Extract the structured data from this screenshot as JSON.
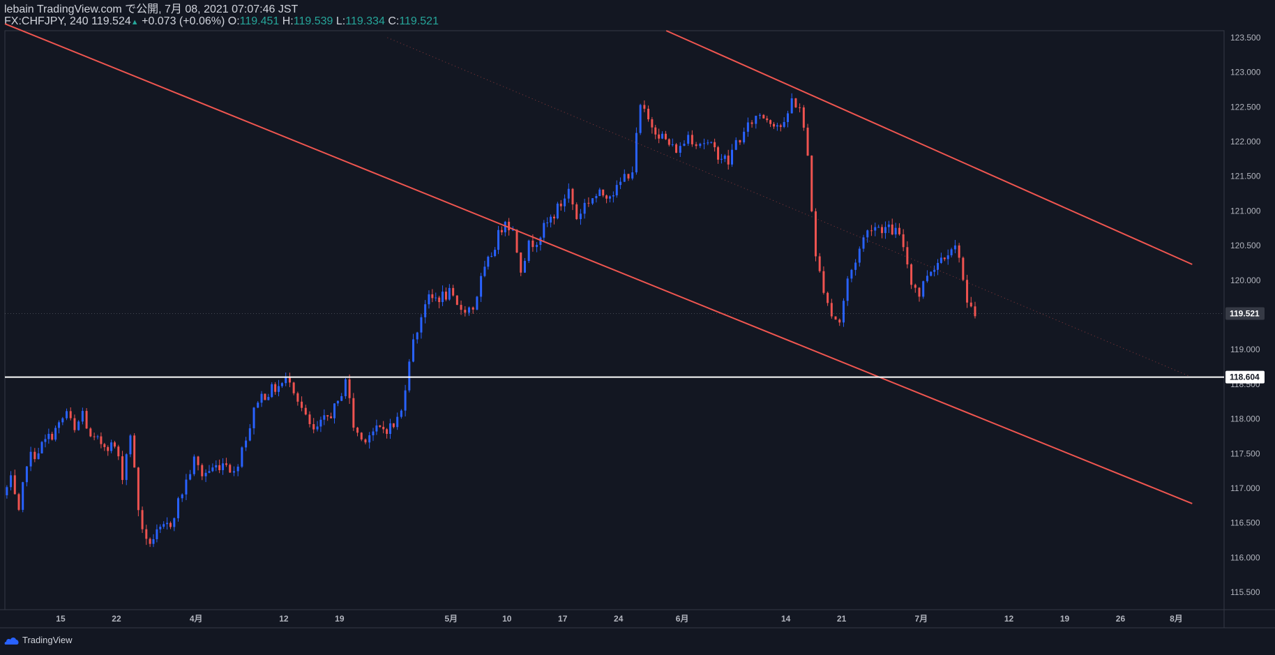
{
  "header": {
    "publisher": "lebain TradingView.com で公開, 7月 08, 2021 07:07:46 JST",
    "symbol": "FX:CHFJPY, 240",
    "last": "119.524",
    "change_arrow": "▲",
    "change": "+0.073 (+0.06%)",
    "o_label": "O:",
    "o_value": "119.451",
    "h_label": "H:",
    "h_value": "119.539",
    "l_label": "L:",
    "l_value": "119.334",
    "c_label": "C:",
    "c_value": "119.521"
  },
  "footer": {
    "brand": "TradingView"
  },
  "colors": {
    "background": "#131722",
    "up": "#2962ff",
    "down": "#ef5350",
    "trendline": "#f05650",
    "axis_text": "#b2b5be",
    "horizontal_line": "#ffffff"
  },
  "chart_data": {
    "type": "candlestick",
    "symbol": "FX:CHFJPY",
    "interval": "240",
    "ylim": [
      115.25,
      123.6
    ],
    "xlim": [
      "2021-03-08",
      "2021-08-08"
    ],
    "y_ticks": [
      "115.500",
      "116.000",
      "116.500",
      "117.000",
      "117.500",
      "118.000",
      "118.500",
      "119.000",
      "119.500",
      "120.000",
      "120.500",
      "121.000",
      "121.500",
      "122.000",
      "122.500",
      "123.000",
      "123.500"
    ],
    "x_ticks": [
      {
        "label": "15",
        "date": "2021-03-15"
      },
      {
        "label": "22",
        "date": "2021-03-22"
      },
      {
        "label": "4月",
        "date": "2021-04-01"
      },
      {
        "label": "12",
        "date": "2021-04-12"
      },
      {
        "label": "19",
        "date": "2021-04-19"
      },
      {
        "label": "5月",
        "date": "2021-05-03"
      },
      {
        "label": "10",
        "date": "2021-05-10"
      },
      {
        "label": "17",
        "date": "2021-05-17"
      },
      {
        "label": "24",
        "date": "2021-05-24"
      },
      {
        "label": "6月",
        "date": "2021-06-01"
      },
      {
        "label": "14",
        "date": "2021-06-14"
      },
      {
        "label": "21",
        "date": "2021-06-21"
      },
      {
        "label": "7月",
        "date": "2021-07-01"
      },
      {
        "label": "12",
        "date": "2021-07-12"
      },
      {
        "label": "19",
        "date": "2021-07-19"
      },
      {
        "label": "26",
        "date": "2021-07-26"
      },
      {
        "label": "8月",
        "date": "2021-08-02"
      }
    ],
    "price_labels": [
      {
        "value": 119.521,
        "text": "119.521"
      },
      {
        "value": 118.604,
        "text": "118.604"
      }
    ],
    "horizontal_level": 118.604,
    "trendlines": [
      {
        "name": "channel-lower",
        "from": {
          "date": "2021-03-08",
          "price": 123.7
        },
        "to": {
          "date": "2021-08-04",
          "price": 116.78
        }
      },
      {
        "name": "channel-upper",
        "from": {
          "date": "2021-05-30",
          "price": 123.6
        },
        "to": {
          "date": "2021-08-04",
          "price": 120.23
        }
      },
      {
        "name": "channel-mid",
        "from": {
          "date": "2021-04-25",
          "price": 123.5
        },
        "to": {
          "date": "2021-08-04",
          "price": 118.6
        }
      }
    ],
    "path": [
      [
        "2021-03-08",
        116.9
      ],
      [
        "2021-03-09",
        117.1
      ],
      [
        "2021-03-10",
        116.6
      ],
      [
        "2021-03-11",
        117.4
      ],
      [
        "2021-03-12",
        117.5
      ],
      [
        "2021-03-15",
        117.9
      ],
      [
        "2021-03-16",
        118.1
      ],
      [
        "2021-03-17",
        117.8
      ],
      [
        "2021-03-18",
        118.1
      ],
      [
        "2021-03-19",
        117.7
      ],
      [
        "2021-03-22",
        117.6
      ],
      [
        "2021-03-23",
        117.2
      ],
      [
        "2021-03-24",
        117.8
      ],
      [
        "2021-03-25",
        116.7
      ],
      [
        "2021-03-26",
        116.2
      ],
      [
        "2021-03-29",
        116.5
      ],
      [
        "2021-03-30",
        116.8
      ],
      [
        "2021-03-31",
        117.1
      ],
      [
        "2021-04-01",
        117.4
      ],
      [
        "2021-04-02",
        117.2
      ],
      [
        "2021-04-05",
        117.4
      ],
      [
        "2021-04-06",
        117.2
      ],
      [
        "2021-04-07",
        117.6
      ],
      [
        "2021-04-08",
        117.9
      ],
      [
        "2021-04-09",
        118.3
      ],
      [
        "2021-04-12",
        118.5
      ],
      [
        "2021-04-13",
        118.6
      ],
      [
        "2021-04-14",
        118.3
      ],
      [
        "2021-04-15",
        118.0
      ],
      [
        "2021-04-16",
        117.8
      ],
      [
        "2021-04-19",
        118.2
      ],
      [
        "2021-04-20",
        118.6
      ],
      [
        "2021-04-21",
        117.9
      ],
      [
        "2021-04-22",
        117.7
      ],
      [
        "2021-04-23",
        117.8
      ],
      [
        "2021-04-26",
        117.9
      ],
      [
        "2021-04-27",
        118.1
      ],
      [
        "2021-04-28",
        118.9
      ],
      [
        "2021-04-29",
        119.3
      ],
      [
        "2021-04-30",
        119.7
      ],
      [
        "2021-05-03",
        119.8
      ],
      [
        "2021-05-04",
        119.6
      ],
      [
        "2021-05-05",
        119.6
      ],
      [
        "2021-05-06",
        119.6
      ],
      [
        "2021-05-07",
        120.0
      ],
      [
        "2021-05-10",
        120.9
      ],
      [
        "2021-05-11",
        120.7
      ],
      [
        "2021-05-12",
        120.2
      ],
      [
        "2021-05-13",
        120.5
      ],
      [
        "2021-05-14",
        120.6
      ],
      [
        "2021-05-17",
        121.1
      ],
      [
        "2021-05-18",
        121.3
      ],
      [
        "2021-05-19",
        120.9
      ],
      [
        "2021-05-20",
        121.1
      ],
      [
        "2021-05-21",
        121.2
      ],
      [
        "2021-05-24",
        121.3
      ],
      [
        "2021-05-25",
        121.5
      ],
      [
        "2021-05-26",
        121.6
      ],
      [
        "2021-05-27",
        122.5
      ],
      [
        "2021-05-28",
        122.3
      ],
      [
        "2021-05-31",
        121.9
      ],
      [
        "2021-06-01",
        121.9
      ],
      [
        "2021-06-02",
        122.1
      ],
      [
        "2021-06-03",
        122.0
      ],
      [
        "2021-06-04",
        122.0
      ],
      [
        "2021-06-07",
        121.7
      ],
      [
        "2021-06-08",
        122.0
      ],
      [
        "2021-06-09",
        122.1
      ],
      [
        "2021-06-10",
        122.3
      ],
      [
        "2021-06-11",
        122.4
      ],
      [
        "2021-06-14",
        122.2
      ],
      [
        "2021-06-15",
        122.6
      ],
      [
        "2021-06-16",
        122.5
      ],
      [
        "2021-06-17",
        121.8
      ],
      [
        "2021-06-18",
        120.3
      ],
      [
        "2021-06-19",
        119.9
      ],
      [
        "2021-06-20",
        119.5
      ],
      [
        "2021-06-21",
        119.4
      ],
      [
        "2021-06-22",
        120.0
      ],
      [
        "2021-06-23",
        120.3
      ],
      [
        "2021-06-24",
        120.6
      ],
      [
        "2021-06-25",
        120.8
      ],
      [
        "2021-06-28",
        120.7
      ],
      [
        "2021-06-29",
        120.5
      ],
      [
        "2021-06-30",
        120.0
      ],
      [
        "2021-07-01",
        119.8
      ],
      [
        "2021-07-02",
        120.1
      ],
      [
        "2021-07-05",
        120.5
      ],
      [
        "2021-07-06",
        120.4
      ],
      [
        "2021-07-07",
        119.6
      ],
      [
        "2021-07-08",
        119.52
      ]
    ]
  }
}
